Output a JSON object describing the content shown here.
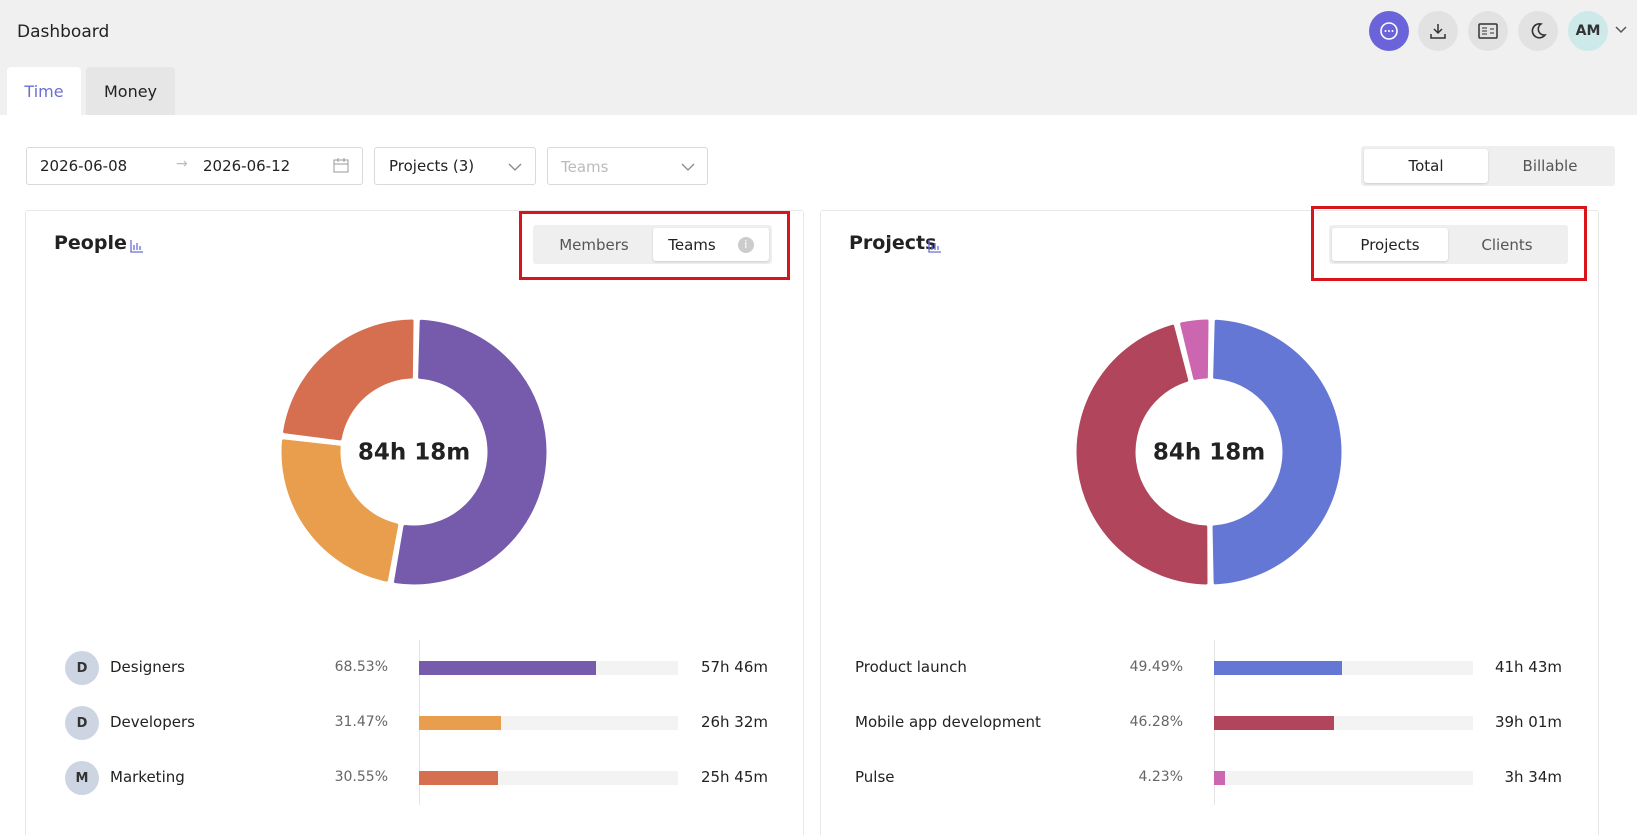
{
  "header": {
    "title": "Dashboard",
    "avatar": "AM"
  },
  "tabs": [
    "Time",
    "Money"
  ],
  "active_tab": 0,
  "filters": {
    "date_start": "2026-06-08",
    "date_end": "2026-06-12",
    "projects": "Projects (3)",
    "teams": "Teams"
  },
  "mode_toggle": [
    "Total",
    "Billable"
  ],
  "active_mode": 0,
  "panels": [
    {
      "title": "People",
      "toggle": [
        "Members",
        "Teams"
      ],
      "active_toggle": 1,
      "total": "84h 18m",
      "items": [
        {
          "initial": "D",
          "name": "Designers",
          "percent": {
            "value": 68.53,
            "label": "68.53%"
          },
          "duration": "57h 46m",
          "color": "#765aab"
        },
        {
          "initial": "D",
          "name": "Developers",
          "percent": {
            "value": 31.47,
            "label": "31.47%"
          },
          "duration": "26h 32m",
          "color": "#e89e4c"
        },
        {
          "initial": "M",
          "name": "Marketing",
          "percent": {
            "value": 30.55,
            "label": "30.55%"
          },
          "duration": "25h 45m",
          "color": "#d66e50"
        }
      ]
    },
    {
      "title": "Projects",
      "toggle": [
        "Projects",
        "Clients"
      ],
      "active_toggle": 0,
      "total": "84h 18m",
      "items": [
        {
          "name": "Product launch",
          "percent": {
            "value": 49.49,
            "label": "49.49%"
          },
          "duration": "41h 43m",
          "color": "#6577d4"
        },
        {
          "name": "Mobile app development",
          "percent": {
            "value": 46.28,
            "label": "46.28%"
          },
          "duration": "39h 01m",
          "color": "#b0455b"
        },
        {
          "name": "Pulse",
          "percent": {
            "value": 4.23,
            "label": "4.23%"
          },
          "duration": "3h 34m",
          "color": "#cc66b0"
        }
      ]
    }
  ]
}
